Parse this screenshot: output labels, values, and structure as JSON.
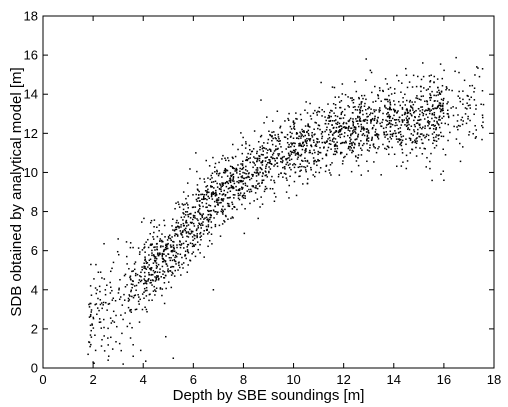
{
  "chart_data": {
    "type": "scatter",
    "xlabel": "Depth by SBE soundings [m]",
    "ylabel": "SDB obtained by analytical model [m]",
    "xlim": [
      0,
      18
    ],
    "ylim": [
      0,
      18
    ],
    "xticks": [
      "0",
      "2",
      "4",
      "6",
      "8",
      "10",
      "12",
      "14",
      "16",
      "18"
    ],
    "yticks": [
      "0",
      "2",
      "4",
      "6",
      "8",
      "10",
      "12",
      "14",
      "16",
      "18"
    ],
    "grid": false,
    "legend": "none",
    "marker_color": "#000000",
    "point_count": 2400,
    "trend": {
      "description": "dense point cloud rising from about (1.8, 2.5) through (6, 7.5), (10, 11.2) and flattening near 12.5-13 at depths 13-17",
      "points": [
        {
          "x": 1.8,
          "y": 2.5
        },
        {
          "x": 2,
          "y": 2.8
        },
        {
          "x": 3,
          "y": 3.5
        },
        {
          "x": 4,
          "y": 4.7
        },
        {
          "x": 5,
          "y": 6.0
        },
        {
          "x": 6,
          "y": 7.5
        },
        {
          "x": 7,
          "y": 8.7
        },
        {
          "x": 8,
          "y": 9.8
        },
        {
          "x": 9,
          "y": 10.6
        },
        {
          "x": 10,
          "y": 11.2
        },
        {
          "x": 11,
          "y": 11.8
        },
        {
          "x": 12,
          "y": 12.3
        },
        {
          "x": 13,
          "y": 12.5
        },
        {
          "x": 14,
          "y": 12.6
        },
        {
          "x": 15,
          "y": 12.8
        },
        {
          "x": 16,
          "y": 13.0
        },
        {
          "x": 17,
          "y": 13.2
        },
        {
          "x": 17.6,
          "y": 13.3
        }
      ],
      "spread": [
        {
          "x": 2,
          "sd": 1.3
        },
        {
          "x": 5,
          "sd": 0.95
        },
        {
          "x": 8,
          "sd": 0.85
        },
        {
          "x": 12,
          "sd": 0.95
        },
        {
          "x": 17,
          "sd": 1.1
        }
      ],
      "depth_density": [
        {
          "range": [
            1.8,
            4
          ],
          "weight": 0.55
        },
        {
          "range": [
            4,
            8
          ],
          "weight": 1.3
        },
        {
          "range": [
            8,
            12
          ],
          "weight": 1.05
        },
        {
          "range": [
            12,
            16
          ],
          "weight": 1.2
        },
        {
          "range": [
            16,
            17.6
          ],
          "weight": 0.35
        }
      ]
    },
    "outliers": [
      {
        "x": 1.8,
        "y": 0.7
      },
      {
        "x": 2.0,
        "y": 0.3
      },
      {
        "x": 2.1,
        "y": 0.9
      },
      {
        "x": 2.6,
        "y": 0.4
      },
      {
        "x": 3.2,
        "y": 0.2
      },
      {
        "x": 3.6,
        "y": 0.6
      },
      {
        "x": 3.9,
        "y": 0.9
      },
      {
        "x": 4.1,
        "y": 0.35
      },
      {
        "x": 5.2,
        "y": 0.5
      },
      {
        "x": 1.9,
        "y": 4.2
      },
      {
        "x": 2.3,
        "y": 4.9
      },
      {
        "x": 3.0,
        "y": 6.6
      },
      {
        "x": 3.5,
        "y": 6.4
      },
      {
        "x": 4.9,
        "y": 1.6
      },
      {
        "x": 6.1,
        "y": 11.0
      },
      {
        "x": 8.7,
        "y": 13.7
      },
      {
        "x": 11.1,
        "y": 14.6
      },
      {
        "x": 12.9,
        "y": 15.8
      },
      {
        "x": 16.0,
        "y": 9.6
      },
      {
        "x": 6.8,
        "y": 4.0
      },
      {
        "x": 14.5,
        "y": 10.2
      }
    ]
  }
}
